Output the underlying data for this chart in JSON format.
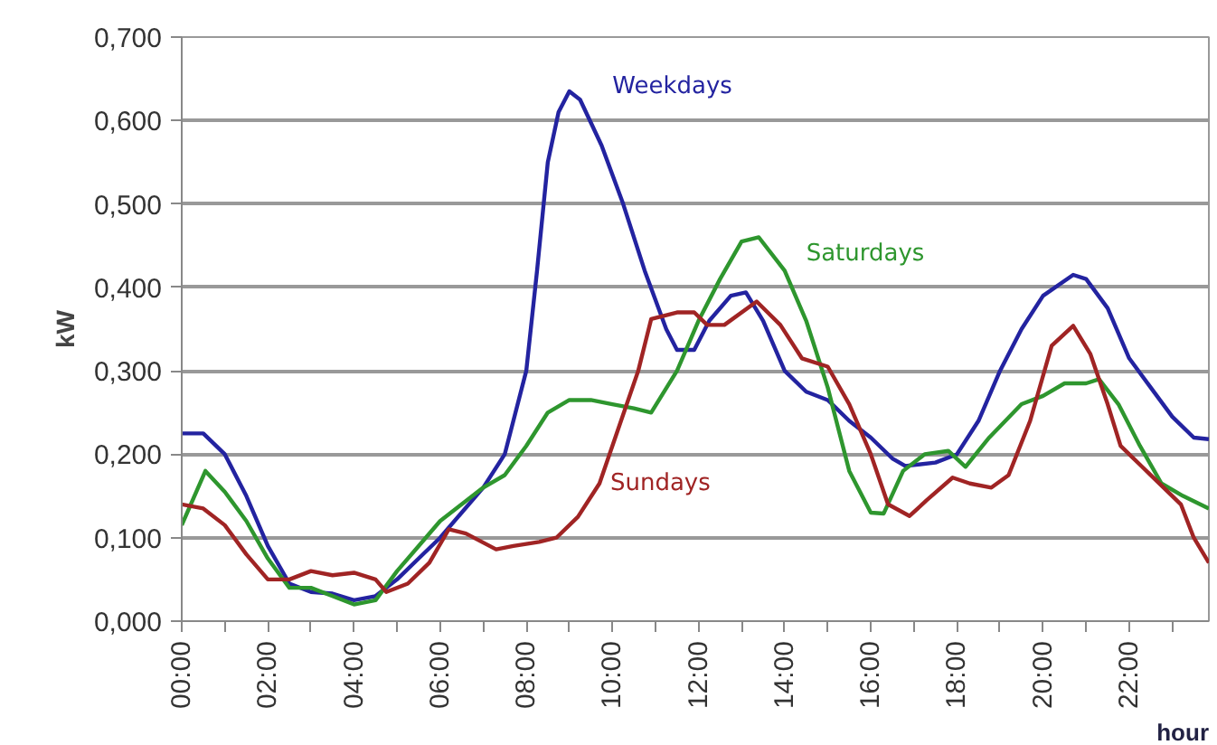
{
  "chart_data": {
    "type": "line",
    "ylabel": "kW",
    "xlabel": "hour",
    "xlim": [
      0,
      23.85
    ],
    "ylim": [
      0,
      0.7
    ],
    "yticks": [
      {
        "value": 0,
        "label": "0,000"
      },
      {
        "value": 0.1,
        "label": "0,100"
      },
      {
        "value": 0.2,
        "label": "0,200"
      },
      {
        "value": 0.3,
        "label": "0,300"
      },
      {
        "value": 0.4,
        "label": "0,400"
      },
      {
        "value": 0.5,
        "label": "0,500"
      },
      {
        "value": 0.6,
        "label": "0,600"
      },
      {
        "value": 0.7,
        "label": "0,700"
      }
    ],
    "xticks": [
      {
        "value": 0,
        "label": "00:00"
      },
      {
        "value": 1,
        "label": null
      },
      {
        "value": 2,
        "label": "02:00"
      },
      {
        "value": 3,
        "label": null
      },
      {
        "value": 4,
        "label": "04:00"
      },
      {
        "value": 5,
        "label": null
      },
      {
        "value": 6,
        "label": "06:00"
      },
      {
        "value": 7,
        "label": null
      },
      {
        "value": 8,
        "label": "08:00"
      },
      {
        "value": 9,
        "label": null
      },
      {
        "value": 10,
        "label": "10:00"
      },
      {
        "value": 11,
        "label": null
      },
      {
        "value": 12,
        "label": "12:00"
      },
      {
        "value": 13,
        "label": null
      },
      {
        "value": 14,
        "label": "14:00"
      },
      {
        "value": 15,
        "label": null
      },
      {
        "value": 16,
        "label": "16:00"
      },
      {
        "value": 17,
        "label": null
      },
      {
        "value": 18,
        "label": "18:00"
      },
      {
        "value": 19,
        "label": null
      },
      {
        "value": 20,
        "label": "20:00"
      },
      {
        "value": 21,
        "label": null
      },
      {
        "value": 22,
        "label": "22:00"
      },
      {
        "value": 23,
        "label": null
      }
    ],
    "grid": "y",
    "marker": "none",
    "line_style": "solid",
    "series": [
      {
        "name": "Weekdays",
        "color": "#2323a0",
        "x": [
          0,
          0.5,
          1,
          1.5,
          2,
          2.5,
          3,
          3.5,
          4,
          4.5,
          5,
          5.5,
          6,
          6.5,
          7,
          7.5,
          8,
          8.25,
          8.5,
          8.75,
          9,
          9.25,
          9.75,
          10.25,
          10.75,
          11.25,
          11.5,
          11.9,
          12.25,
          12.75,
          13.1,
          13.5,
          14,
          14.5,
          15,
          15.5,
          16,
          16.5,
          16.8,
          17.5,
          18,
          18.5,
          19,
          19.5,
          20,
          20.7,
          21,
          21.5,
          22,
          22.5,
          23,
          23.5,
          23.85
        ],
        "values": [
          0.225,
          0.225,
          0.2,
          0.15,
          0.09,
          0.045,
          0.035,
          0.033,
          0.025,
          0.03,
          0.05,
          0.075,
          0.1,
          0.13,
          0.16,
          0.2,
          0.3,
          0.42,
          0.55,
          0.61,
          0.635,
          0.625,
          0.57,
          0.5,
          0.42,
          0.35,
          0.325,
          0.325,
          0.36,
          0.39,
          0.394,
          0.36,
          0.3,
          0.275,
          0.265,
          0.24,
          0.22,
          0.195,
          0.186,
          0.19,
          0.2,
          0.24,
          0.3,
          0.35,
          0.39,
          0.415,
          0.41,
          0.375,
          0.315,
          0.28,
          0.245,
          0.22,
          0.218
        ]
      },
      {
        "name": "Saturdays",
        "color": "#2e962e",
        "x": [
          0,
          0.55,
          1,
          1.5,
          2,
          2.5,
          3,
          3.5,
          4,
          4.5,
          5,
          5.5,
          6,
          6.5,
          7,
          7.5,
          8,
          8.5,
          9,
          9.5,
          10,
          10.5,
          10.9,
          11.5,
          12,
          12.5,
          13,
          13.4,
          14,
          14.5,
          15,
          15.5,
          16,
          16.3,
          16.75,
          17.25,
          17.8,
          18.2,
          18.75,
          19.5,
          20,
          20.5,
          21,
          21.3,
          21.75,
          22.25,
          22.75,
          23.25,
          23.85
        ],
        "values": [
          0.115,
          0.18,
          0.155,
          0.12,
          0.075,
          0.04,
          0.04,
          0.03,
          0.02,
          0.025,
          0.06,
          0.09,
          0.12,
          0.14,
          0.16,
          0.175,
          0.21,
          0.25,
          0.265,
          0.265,
          0.26,
          0.255,
          0.25,
          0.3,
          0.36,
          0.41,
          0.455,
          0.46,
          0.42,
          0.36,
          0.28,
          0.18,
          0.13,
          0.129,
          0.18,
          0.2,
          0.204,
          0.185,
          0.22,
          0.26,
          0.27,
          0.285,
          0.285,
          0.29,
          0.26,
          0.21,
          0.165,
          0.15,
          0.135
        ]
      },
      {
        "name": "Sundays",
        "color": "#a02424",
        "x": [
          0,
          0.5,
          1,
          1.5,
          2,
          2.5,
          3,
          3.5,
          4,
          4.5,
          4.75,
          5.25,
          5.75,
          6.2,
          6.6,
          7.3,
          7.7,
          8.3,
          8.7,
          9.2,
          9.7,
          10.2,
          10.6,
          10.9,
          11.5,
          11.9,
          12.2,
          12.6,
          13.35,
          13.9,
          14.4,
          15,
          15.5,
          16,
          16.4,
          16.9,
          17.3,
          17.9,
          18.3,
          18.8,
          19.2,
          19.7,
          20.2,
          20.7,
          21.1,
          21.5,
          21.8,
          22.3,
          22.8,
          23.2,
          23.5,
          23.85
        ],
        "values": [
          0.14,
          0.135,
          0.115,
          0.08,
          0.05,
          0.05,
          0.06,
          0.055,
          0.058,
          0.05,
          0.035,
          0.045,
          0.07,
          0.11,
          0.105,
          0.086,
          0.09,
          0.095,
          0.1,
          0.125,
          0.165,
          0.24,
          0.3,
          0.362,
          0.37,
          0.37,
          0.355,
          0.355,
          0.383,
          0.355,
          0.315,
          0.305,
          0.26,
          0.2,
          0.14,
          0.126,
          0.145,
          0.172,
          0.165,
          0.16,
          0.175,
          0.24,
          0.33,
          0.354,
          0.32,
          0.26,
          0.21,
          0.185,
          0.16,
          0.14,
          0.1,
          0.07
        ]
      }
    ]
  }
}
